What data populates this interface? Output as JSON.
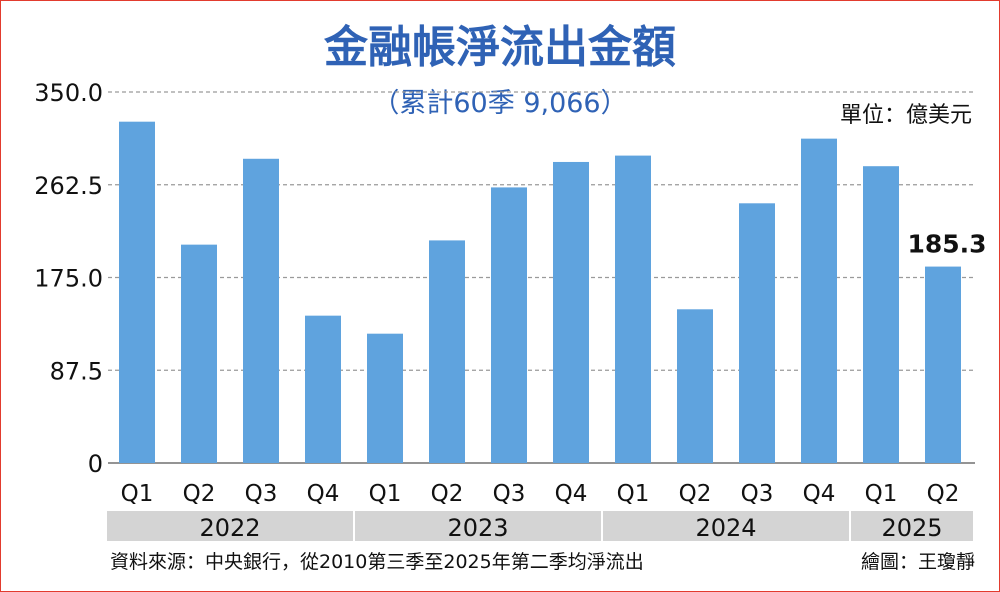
{
  "chart_data": {
    "type": "bar",
    "title": "金融帳淨流出金額",
    "subtitle": "（累計60季 9,066）",
    "unit_label": "單位：億美元",
    "categories": [
      "Q1",
      "Q2",
      "Q3",
      "Q4",
      "Q1",
      "Q2",
      "Q3",
      "Q4",
      "Q1",
      "Q2",
      "Q3",
      "Q4",
      "Q1",
      "Q2"
    ],
    "groups": [
      {
        "label": "2022",
        "count": 4
      },
      {
        "label": "2023",
        "count": 4
      },
      {
        "label": "2024",
        "count": 4
      },
      {
        "label": "2025",
        "count": 2
      }
    ],
    "values": [
      322,
      206,
      287,
      139,
      122,
      210,
      260,
      284,
      290,
      145,
      245,
      306,
      280,
      185.3
    ],
    "data_labels": [
      {
        "index": 13,
        "text": "185.3"
      }
    ],
    "ylim": [
      0,
      350
    ],
    "yticks": [
      "0",
      "87.5",
      "175.0",
      "262.5",
      "350.0"
    ],
    "ytick_values": [
      0,
      87.5,
      175,
      262.5,
      350
    ],
    "grid": true,
    "colors": {
      "bar": "#5fa3de",
      "title": "#2f62b5",
      "year_band": "#d4d4d4",
      "grid": "#9a9a9a",
      "frame": "#e23b2e"
    }
  },
  "footer": {
    "source": "資料來源：中央銀行，從2010第三季至2025年第二季均淨流出",
    "author": "繪圖：王瓊靜"
  }
}
